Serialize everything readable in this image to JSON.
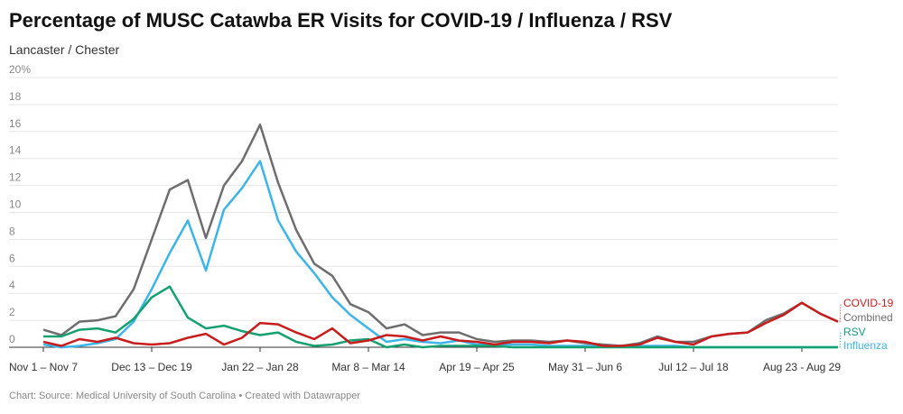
{
  "chart_data": {
    "type": "line",
    "title": "Percentage of MUSC Catawba ER Visits for COVID-19 / Influenza / RSV",
    "subtitle": "Lancaster / Chester",
    "source": "Chart: Source: Medical University of South Carolina • Created with Datawrapper",
    "categories": [
      "Nov 1 – Nov 7",
      null,
      null,
      null,
      null,
      null,
      "Dec 13 – Dec 19",
      null,
      null,
      null,
      null,
      null,
      "Jan 22 – Jan 28",
      null,
      null,
      null,
      null,
      null,
      "Mar 8 – Mar 14",
      null,
      null,
      null,
      null,
      null,
      "Apr 19 – Apr 25",
      null,
      null,
      null,
      null,
      null,
      "May 31 – Jun 6",
      null,
      null,
      null,
      null,
      null,
      "Jul 12 – Jul 18",
      null,
      null,
      null,
      null,
      null,
      "Aug 23 - Aug 29",
      null,
      null
    ],
    "ylim": [
      0,
      20
    ],
    "yticks": [
      0,
      2,
      4,
      6,
      8,
      10,
      12,
      14,
      16,
      18,
      {
        "value": 20,
        "label": "20%"
      }
    ],
    "grid": true,
    "series": [
      {
        "name": "Combined",
        "color": "#6e6e6e",
        "values": [
          1.3,
          0.9,
          1.9,
          2.0,
          2.3,
          4.3,
          8.0,
          11.7,
          12.4,
          8.1,
          12.0,
          13.8,
          16.5,
          12.2,
          8.7,
          6.2,
          5.3,
          3.2,
          2.6,
          1.4,
          1.7,
          0.9,
          1.1,
          1.1,
          0.6,
          0.4,
          0.5,
          0.5,
          0.4,
          0.5,
          0.3,
          0.2,
          0.1,
          0.3,
          0.8,
          0.4,
          0.4,
          0.8,
          1.0,
          1.1,
          2.0,
          2.5,
          3.3,
          2.5,
          1.9
        ]
      },
      {
        "name": "Influenza",
        "color": "#3cb5e8",
        "values": [
          0.2,
          0,
          0.1,
          0.3,
          0.6,
          1.9,
          4.3,
          7.0,
          9.4,
          5.7,
          10.2,
          11.8,
          13.8,
          9.4,
          7.1,
          5.5,
          3.7,
          2.4,
          1.4,
          0.4,
          0.6,
          0.4,
          0.3,
          0.5,
          0.2,
          0.2,
          0.2,
          0.2,
          0.1,
          0.1,
          0.1,
          0.1,
          0.1,
          0.1,
          0.1,
          0.1,
          0,
          0,
          0,
          0,
          0,
          0,
          0,
          0,
          0
        ]
      },
      {
        "name": "RSV",
        "color": "#15a16f",
        "values": [
          0.8,
          0.8,
          1.3,
          1.4,
          1.1,
          2.1,
          3.7,
          4.5,
          2.2,
          1.4,
          1.6,
          1.2,
          0.9,
          1.1,
          0.4,
          0.1,
          0.2,
          0.5,
          0.6,
          0,
          0.2,
          0,
          0.1,
          0.1,
          0.1,
          0.1,
          0,
          0,
          0,
          0,
          0,
          0,
          0,
          0,
          0,
          0,
          0,
          0,
          0,
          0,
          0,
          0,
          0,
          0,
          0
        ]
      },
      {
        "name": "COVID-19",
        "color": "#c71e1d",
        "values": [
          0.4,
          0.1,
          0.6,
          0.4,
          0.7,
          0.3,
          0.2,
          0.3,
          0.7,
          1.0,
          0.2,
          0.7,
          1.8,
          1.7,
          1.1,
          0.6,
          1.4,
          0.3,
          0.5,
          0.9,
          0.8,
          0.5,
          0.8,
          0.5,
          0.4,
          0.2,
          0.4,
          0.4,
          0.3,
          0.5,
          0.4,
          0.1,
          0.1,
          0.2,
          0.7,
          0.4,
          0.2,
          0.8,
          1.0,
          1.1,
          1.8,
          2.4,
          3.3,
          2.5,
          1.9
        ]
      }
    ]
  }
}
